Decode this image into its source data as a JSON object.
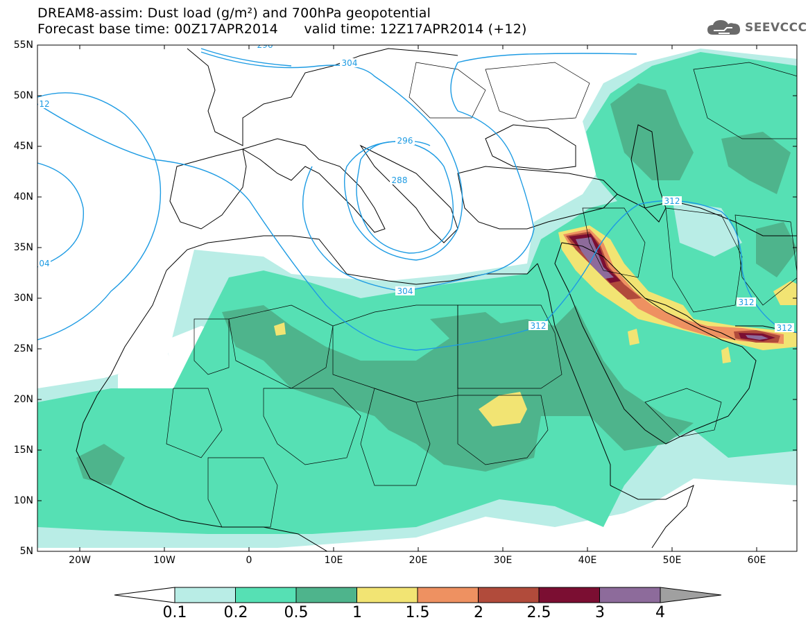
{
  "header": {
    "title_line1": "DREAM8-assim: Dust load (g/m²) and 700hPa geopotential",
    "title_line2": "Forecast base time: 00Z17APR2014      valid time: 12Z17APR2014 (+12)"
  },
  "logo": {
    "text": "SEEVCCC",
    "icon": "cloud-icon"
  },
  "map": {
    "lat_labels": [
      "55N",
      "50N",
      "45N",
      "40N",
      "35N",
      "30N",
      "25N",
      "20N",
      "15N",
      "10N",
      "5N"
    ],
    "lon_labels": [
      "20W",
      "10W",
      "0",
      "10E",
      "20E",
      "30E",
      "40E",
      "50E",
      "60E"
    ],
    "contour_labels": [
      "296",
      "304",
      "12",
      "296",
      "288",
      "04",
      "312",
      "304",
      "312",
      "312",
      "312"
    ]
  },
  "colorbar": {
    "labels": [
      "0.1",
      "0.2",
      "0.5",
      "1",
      "1.5",
      "2",
      "2.5",
      "3",
      "4"
    ],
    "colors": [
      "#b9ede6",
      "#56e0b4",
      "#4eb48c",
      "#f2e473",
      "#ee9161",
      "#b14b3b",
      "#7b0e32",
      "#8d6b9b",
      "#a0a0a0"
    ]
  },
  "colors": {
    "contour": "#1d9be3",
    "coast": "#000000"
  }
}
